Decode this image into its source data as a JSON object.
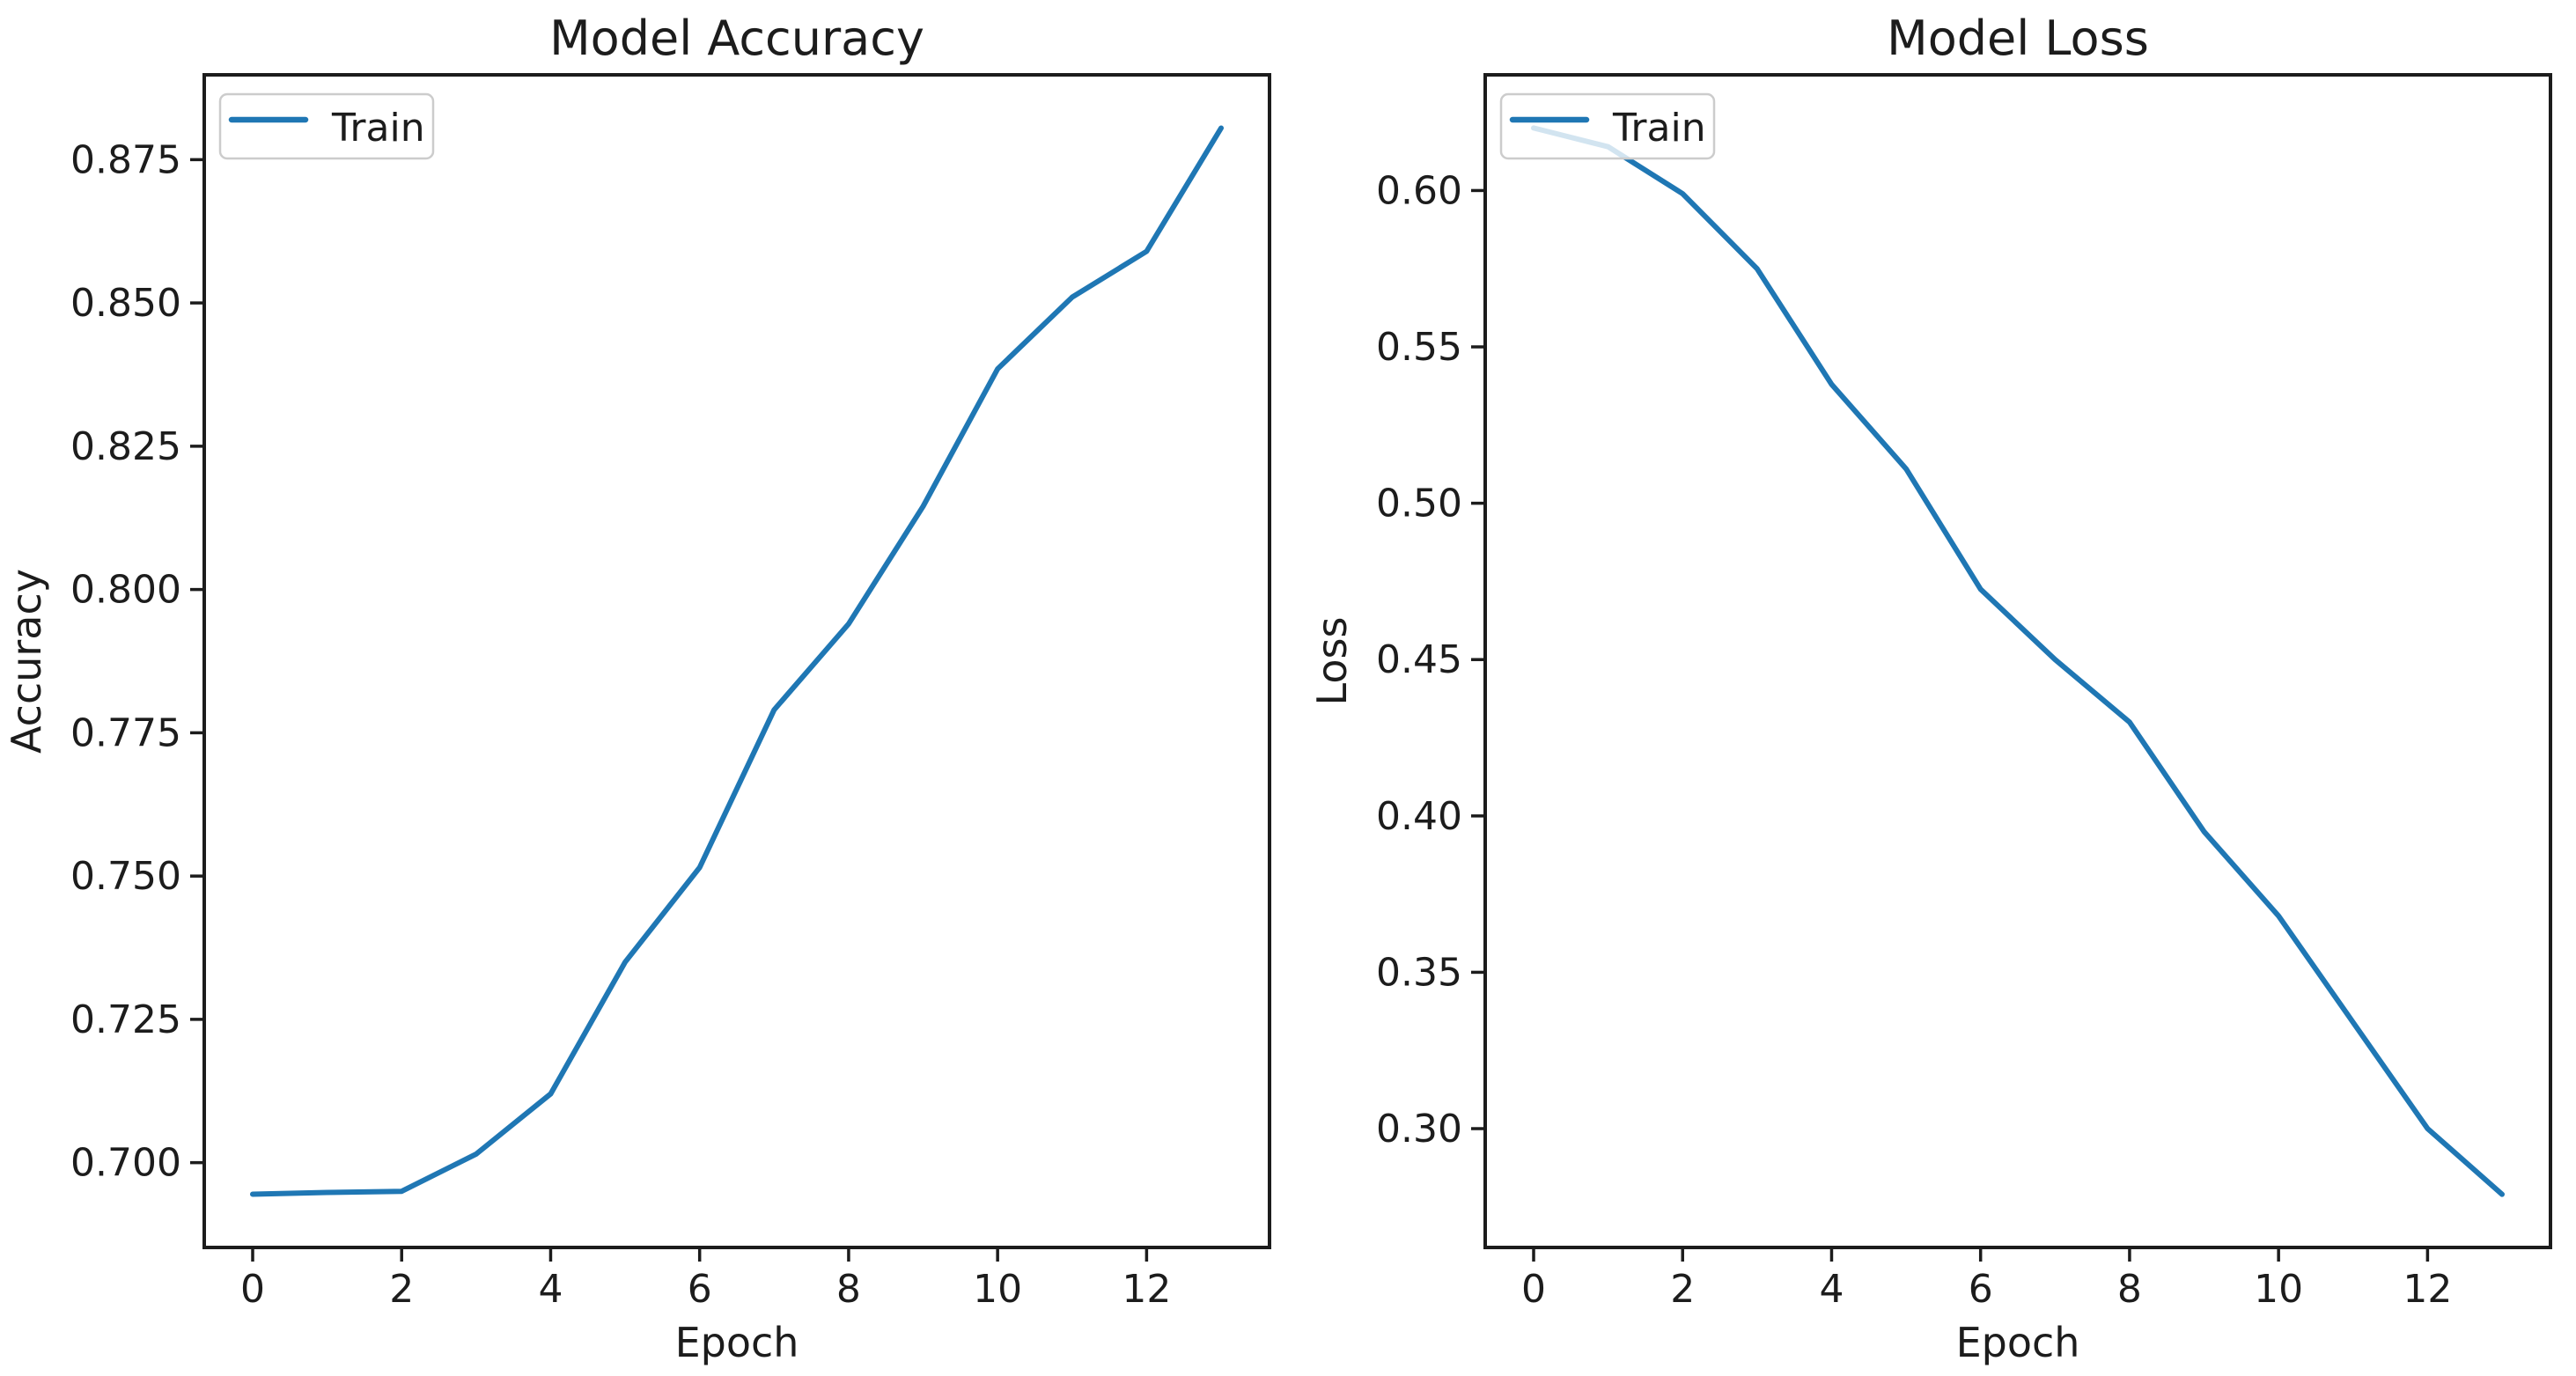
{
  "figure": {
    "background": "#ffffff",
    "accent_color": "#1f77b4",
    "text_color": "#1c1c1c",
    "spine_color": "#1c1c1c",
    "legend_border_color": "#cccccc",
    "legend_fill_opacity": 0.8
  },
  "chart_data": [
    {
      "id": "accuracy",
      "type": "line",
      "title": "Model Accuracy",
      "xlabel": "Epoch",
      "ylabel": "Accuracy",
      "grid": false,
      "legend": {
        "position": "upper left",
        "entries": [
          "Train"
        ]
      },
      "x": [
        0,
        1,
        2,
        3,
        4,
        5,
        6,
        7,
        8,
        9,
        10,
        11,
        12,
        13
      ],
      "series": [
        {
          "name": "Train",
          "color": "#1f77b4",
          "values": [
            0.6945,
            0.6948,
            0.695,
            0.7015,
            0.712,
            0.735,
            0.7515,
            0.779,
            0.794,
            0.8145,
            0.8385,
            0.851,
            0.859,
            0.8805
          ]
        }
      ],
      "xlim": [
        -0.65,
        13.65
      ],
      "ylim": [
        0.6852,
        0.8898
      ],
      "xticks": [
        0,
        2,
        4,
        6,
        8,
        10,
        12
      ],
      "yticks": [
        0.7,
        0.725,
        0.75,
        0.775,
        0.8,
        0.825,
        0.85,
        0.875
      ],
      "ytick_decimals": 3
    },
    {
      "id": "loss",
      "type": "line",
      "title": "Model Loss",
      "xlabel": "Epoch",
      "ylabel": "Loss",
      "grid": false,
      "legend": {
        "position": "upper left",
        "entries": [
          "Train"
        ]
      },
      "x": [
        0,
        1,
        2,
        3,
        4,
        5,
        6,
        7,
        8,
        9,
        10,
        11,
        12,
        13
      ],
      "series": [
        {
          "name": "Train",
          "color": "#1f77b4",
          "values": [
            0.62,
            0.614,
            0.599,
            0.575,
            0.538,
            0.511,
            0.4725,
            0.45,
            0.43,
            0.395,
            0.368,
            0.334,
            0.3,
            0.279
          ]
        }
      ],
      "xlim": [
        -0.65,
        13.65
      ],
      "ylim": [
        0.262,
        0.637
      ],
      "xticks": [
        0,
        2,
        4,
        6,
        8,
        10,
        12
      ],
      "yticks": [
        0.3,
        0.35,
        0.4,
        0.45,
        0.5,
        0.55,
        0.6
      ],
      "ytick_decimals": 2
    }
  ]
}
